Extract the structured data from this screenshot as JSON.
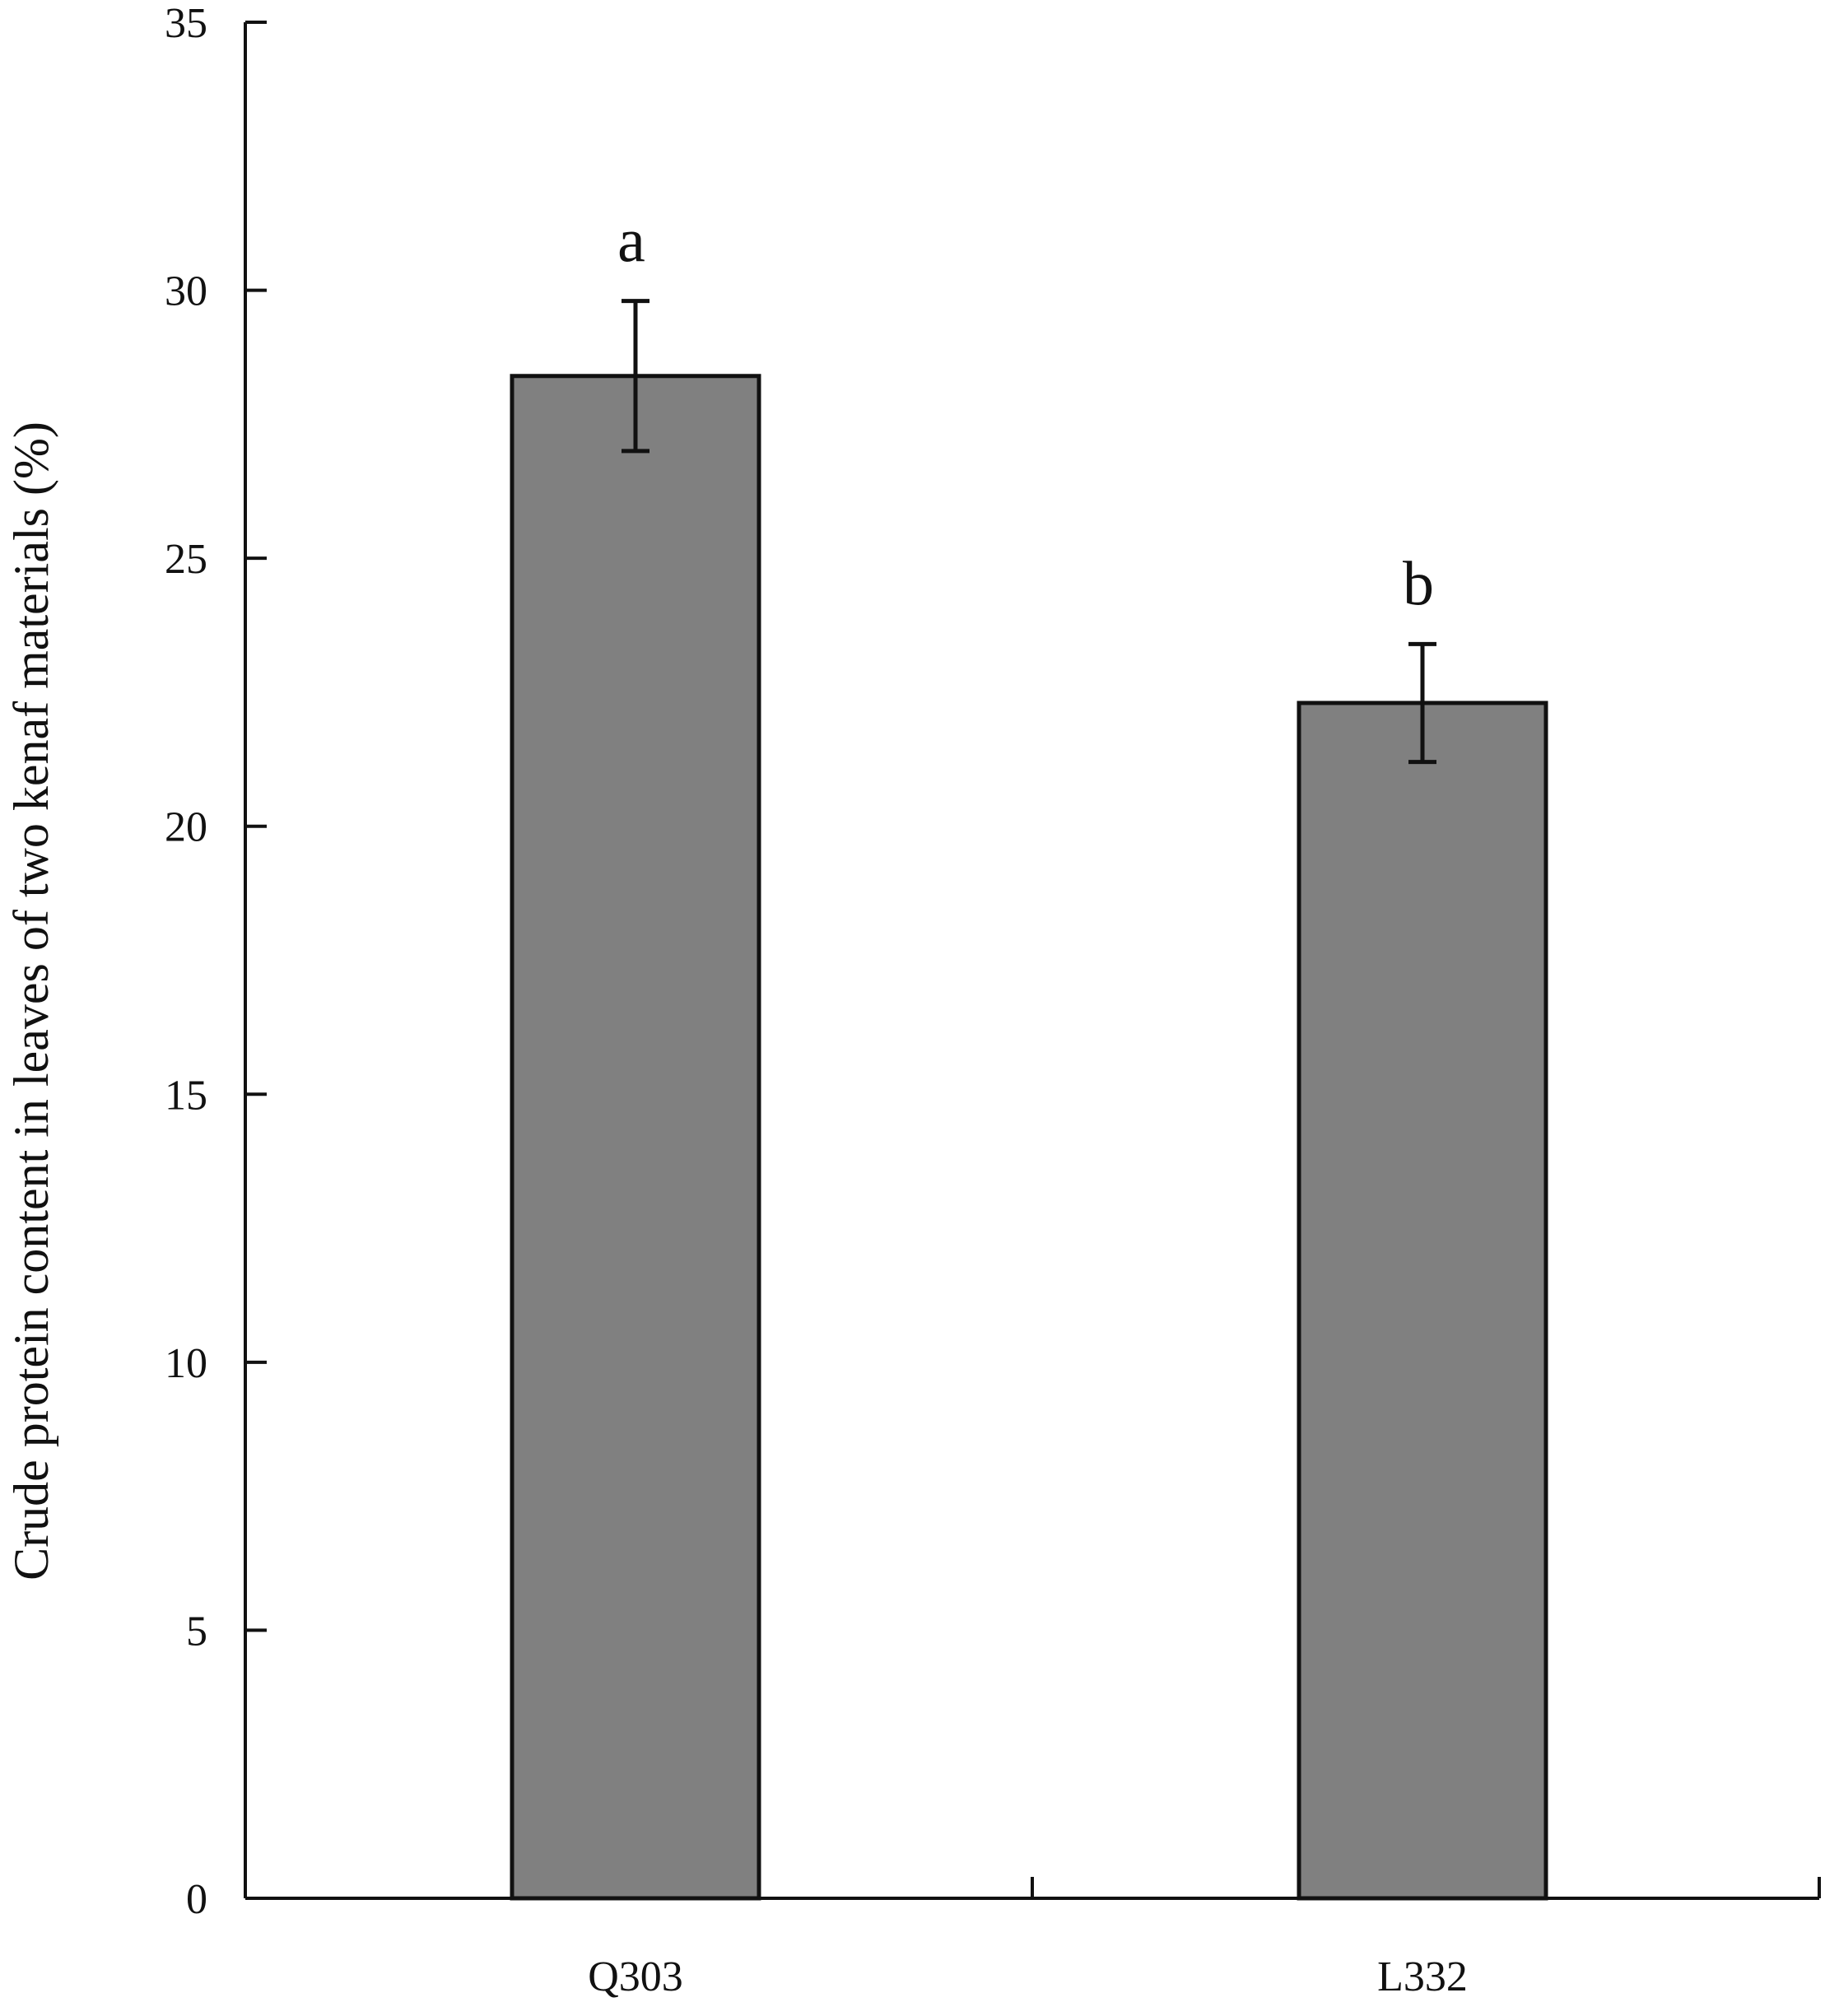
{
  "chart_data": {
    "type": "bar",
    "title": "",
    "xlabel": "",
    "ylabel": "Crude protein content in leaves of two kenaf materials (%)",
    "categories": [
      "Q303",
      "L332"
    ],
    "values": [
      28.4,
      22.3
    ],
    "error": [
      1.4,
      1.1
    ],
    "significance_labels": [
      "a",
      "b"
    ],
    "ylim": [
      0,
      35
    ],
    "yticks": [
      0,
      5,
      10,
      15,
      20,
      25,
      30,
      35
    ],
    "ytick_labels": [
      "0",
      "5",
      "10",
      "15",
      "20",
      "25",
      "30",
      "35"
    ],
    "grid": false,
    "legend": "none",
    "bar_color": "#808080"
  }
}
